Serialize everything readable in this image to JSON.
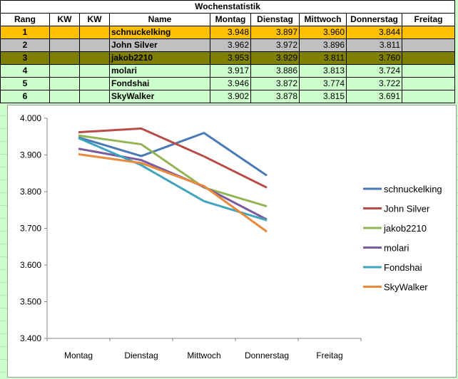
{
  "sheet": {
    "title": "Wochenstatistik",
    "headers": [
      "Rang",
      "KW",
      "KW",
      "Name",
      "Montag",
      "Dienstag",
      "Mittwoch",
      "Donnerstag",
      "Freitag"
    ],
    "rows": [
      {
        "rank": "1",
        "kw1": "",
        "kw2": "",
        "name": "schnuckelking",
        "mon": "3.948",
        "tue": "3.897",
        "wed": "3.960",
        "thu": "3.844",
        "fri": "",
        "color": "#ffc000"
      },
      {
        "rank": "2",
        "kw1": "",
        "kw2": "",
        "name": "John Silver",
        "mon": "3.962",
        "tue": "3.972",
        "wed": "3.896",
        "thu": "3.811",
        "fri": "",
        "color": "#c0c0c0"
      },
      {
        "rank": "3",
        "kw1": "",
        "kw2": "",
        "name": "jakob2210",
        "mon": "3.953",
        "tue": "3.929",
        "wed": "3.811",
        "thu": "3.760",
        "fri": "",
        "color": "#808000"
      },
      {
        "rank": "4",
        "kw1": "",
        "kw2": "",
        "name": "molari",
        "mon": "3.917",
        "tue": "3.886",
        "wed": "3.813",
        "thu": "3.724",
        "fri": "",
        "color": "#ccffcc"
      },
      {
        "rank": "5",
        "kw1": "",
        "kw2": "",
        "name": "Fondshai",
        "mon": "3.946",
        "tue": "3.872",
        "wed": "3.774",
        "thu": "3.722",
        "fri": "",
        "color": "#ccffcc"
      },
      {
        "rank": "6",
        "kw1": "",
        "kw2": "",
        "name": "SkyWalker",
        "mon": "3.902",
        "tue": "3.878",
        "wed": "3.815",
        "thu": "3.691",
        "fri": "",
        "color": "#ccffcc"
      }
    ]
  },
  "chart_data": {
    "type": "line",
    "title": "",
    "xlabel": "",
    "ylabel": "",
    "categories": [
      "Montag",
      "Dienstag",
      "Mittwoch",
      "Donnerstag",
      "Freitag"
    ],
    "ylim": [
      3.4,
      4.0
    ],
    "yticks": [
      3.4,
      3.5,
      3.6,
      3.7,
      3.8,
      3.9,
      4.0
    ],
    "ytick_labels": [
      "3.400",
      "3.500",
      "3.600",
      "3.700",
      "3.800",
      "3.900",
      "4.000"
    ],
    "grid": false,
    "legend_position": "right",
    "series": [
      {
        "name": "schnuckelking",
        "color": "#4a7ab5",
        "values": [
          3.948,
          3.897,
          3.96,
          3.844,
          null
        ]
      },
      {
        "name": "John Silver",
        "color": "#b84c48",
        "values": [
          3.962,
          3.972,
          3.896,
          3.811,
          null
        ]
      },
      {
        "name": "jakob2210",
        "color": "#93b455",
        "values": [
          3.953,
          3.929,
          3.811,
          3.76,
          null
        ]
      },
      {
        "name": "molari",
        "color": "#7a5b9e",
        "values": [
          3.917,
          3.886,
          3.813,
          3.724,
          null
        ]
      },
      {
        "name": "Fondshai",
        "color": "#41a4bd",
        "values": [
          3.946,
          3.872,
          3.774,
          3.722,
          null
        ]
      },
      {
        "name": "SkyWalker",
        "color": "#e88a3c",
        "values": [
          3.902,
          3.878,
          3.815,
          3.691,
          null
        ]
      }
    ]
  }
}
